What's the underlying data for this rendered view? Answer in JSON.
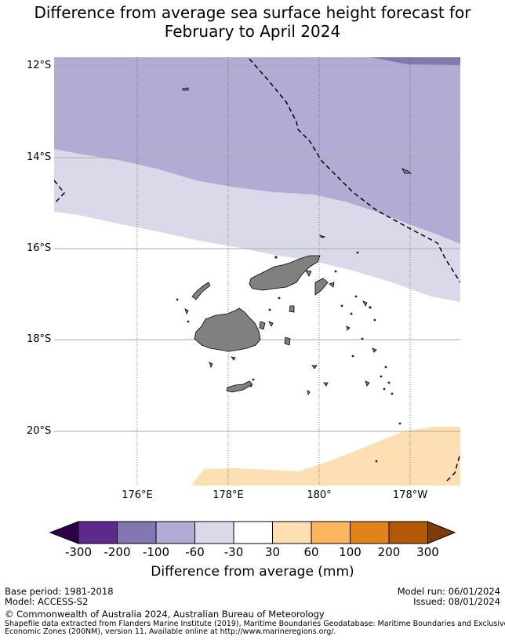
{
  "title": {
    "line1": "Difference from average sea surface height forecast for",
    "line2": "February to April 2024"
  },
  "map": {
    "lat_labels": [
      "12°S",
      "14°S",
      "16°S",
      "18°S",
      "20°S"
    ],
    "lon_labels": [
      "176°E",
      "178°E",
      "180°",
      "178°W"
    ],
    "colors": {
      "band_100_60": "#b0acd3",
      "band_60_30": "#d9d9ea",
      "band_neg_300_200": "#5b2a8c",
      "band_neg_200_100": "#8476b0",
      "band_30_60": "#fddfb4",
      "band_60_100": "#fbb55d",
      "band_100_200": "#e2821b",
      "band_200_300": "#b35807",
      "band_under_300": "#2d004b",
      "band_over_300": "#7f3b08",
      "land": "#808080",
      "gridline": "#aaaaaa"
    },
    "eez_boundary": "dashed-black-line",
    "land_feature": "fiji-islands"
  },
  "colorbar": {
    "ticks": [
      "-300",
      "-200",
      "-100",
      "-60",
      "-30",
      "30",
      "60",
      "100",
      "200",
      "300"
    ],
    "label": "Difference from average (mm)"
  },
  "footer": {
    "base_period": "Base period: 1981-2018",
    "model": "Model: ACCESS-S2",
    "model_run": "Model run: 06/01/2024",
    "issued": "Issued: 08/01/2024",
    "copyright": "© Commonwealth of Australia 2024, Australian Bureau of Meteorology",
    "shapefile_line1": "Shapefile data extracted from Flanders Marine Institute (2019), Maritime Boundaries Geodatabase: Maritime Boundaries and Exclusive",
    "shapefile_line2": "Economic Zones (200NM), version 11. Available online at http://www.marineregions.org/."
  }
}
